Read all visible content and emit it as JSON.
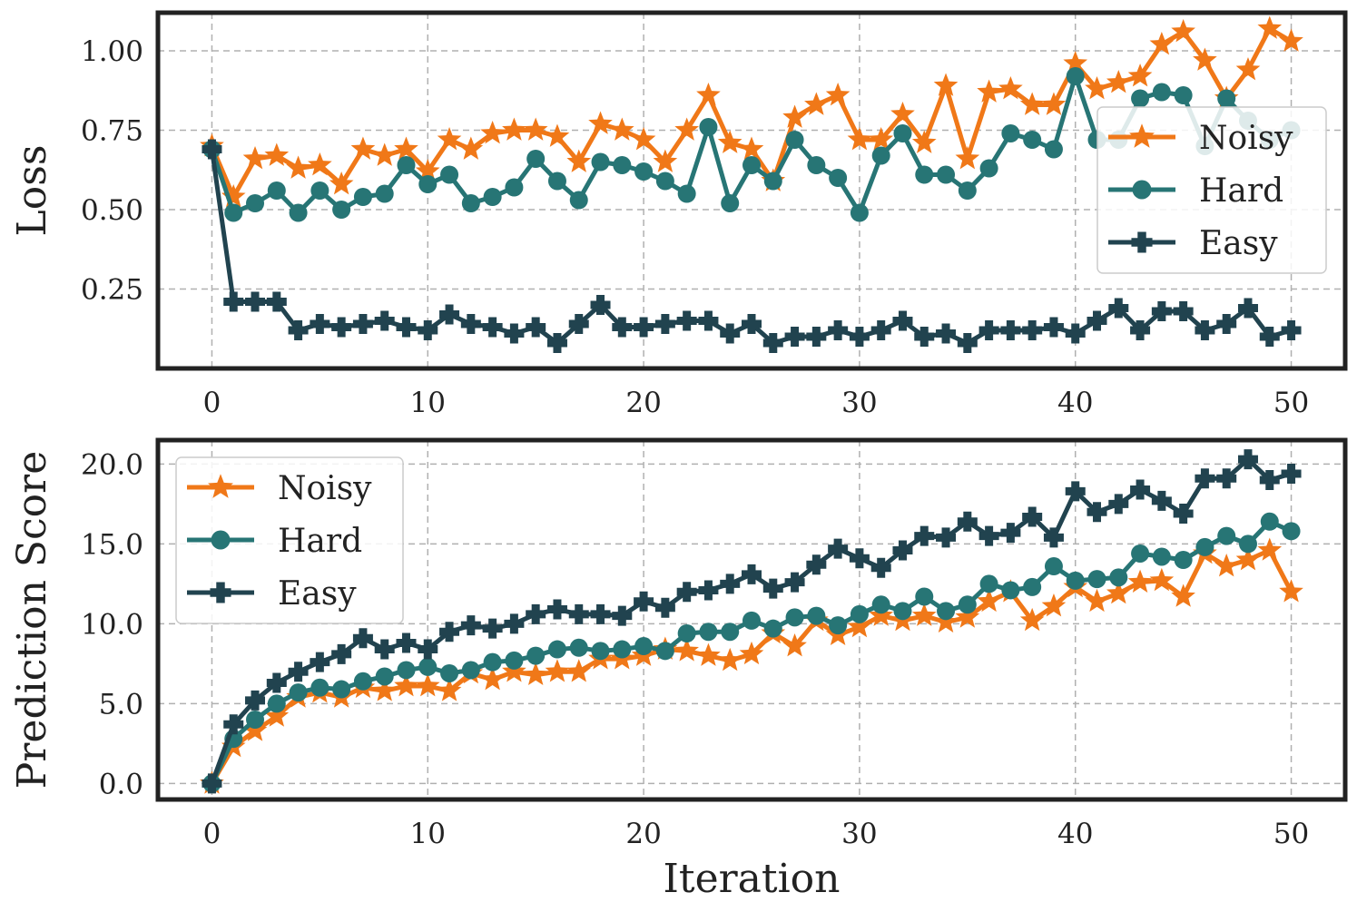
{
  "chart_data": [
    {
      "type": "line",
      "title": "",
      "xlabel": "",
      "ylabel": "Loss",
      "xlim": [
        -2.5,
        52.5
      ],
      "ylim": [
        0.0,
        1.12
      ],
      "xticks": [
        0,
        10,
        20,
        30,
        40,
        50
      ],
      "xtick_labels": [
        "0",
        "10",
        "20",
        "30",
        "40",
        "50"
      ],
      "yticks": [
        0.25,
        0.5,
        0.75,
        1.0
      ],
      "ytick_labels": [
        "0.25",
        "0.50",
        "0.75",
        "1.00"
      ],
      "grid": true,
      "legend": "right",
      "x": [
        0,
        1,
        2,
        3,
        4,
        5,
        6,
        7,
        8,
        9,
        10,
        11,
        12,
        13,
        14,
        15,
        16,
        17,
        18,
        19,
        20,
        21,
        22,
        23,
        24,
        25,
        26,
        27,
        28,
        29,
        30,
        31,
        32,
        33,
        34,
        35,
        36,
        37,
        38,
        39,
        40,
        41,
        42,
        43,
        44,
        45,
        46,
        47,
        48,
        49,
        50
      ],
      "series": [
        {
          "name": "Noisy",
          "color": "#F07818",
          "marker": "star",
          "values": [
            0.7,
            0.54,
            0.66,
            0.67,
            0.63,
            0.64,
            0.58,
            0.69,
            0.67,
            0.69,
            0.62,
            0.72,
            0.69,
            0.74,
            0.75,
            0.75,
            0.73,
            0.65,
            0.77,
            0.75,
            0.72,
            0.65,
            0.75,
            0.86,
            0.71,
            0.69,
            0.59,
            0.79,
            0.83,
            0.86,
            0.72,
            0.72,
            0.8,
            0.71,
            0.89,
            0.66,
            0.87,
            0.88,
            0.83,
            0.83,
            0.96,
            0.88,
            0.9,
            0.92,
            1.02,
            1.06,
            0.97,
            0.85,
            0.94,
            1.07,
            1.03
          ]
        },
        {
          "name": "Hard",
          "color": "#277575",
          "marker": "circle",
          "values": [
            0.69,
            0.49,
            0.52,
            0.56,
            0.49,
            0.56,
            0.5,
            0.54,
            0.55,
            0.64,
            0.58,
            0.61,
            0.52,
            0.54,
            0.57,
            0.66,
            0.59,
            0.53,
            0.65,
            0.64,
            0.62,
            0.59,
            0.55,
            0.76,
            0.52,
            0.64,
            0.59,
            0.72,
            0.64,
            0.6,
            0.49,
            0.67,
            0.74,
            0.61,
            0.61,
            0.56,
            0.63,
            0.74,
            0.72,
            0.69,
            0.92,
            0.72,
            0.72,
            0.85,
            0.87,
            0.86,
            0.7,
            0.85,
            0.78,
            0.72,
            0.75
          ]
        },
        {
          "name": "Easy",
          "color": "#21434F",
          "marker": "plus",
          "values": [
            0.69,
            0.21,
            0.21,
            0.21,
            0.12,
            0.14,
            0.13,
            0.14,
            0.15,
            0.13,
            0.12,
            0.17,
            0.14,
            0.13,
            0.11,
            0.13,
            0.08,
            0.14,
            0.2,
            0.13,
            0.13,
            0.14,
            0.15,
            0.15,
            0.11,
            0.14,
            0.08,
            0.1,
            0.1,
            0.12,
            0.1,
            0.12,
            0.15,
            0.1,
            0.11,
            0.08,
            0.12,
            0.12,
            0.12,
            0.13,
            0.11,
            0.15,
            0.19,
            0.12,
            0.18,
            0.18,
            0.12,
            0.14,
            0.19,
            0.1,
            0.12
          ]
        }
      ]
    },
    {
      "type": "line",
      "title": "",
      "xlabel": "Iteration",
      "ylabel": "Prediction Score",
      "xlim": [
        -2.5,
        52.5
      ],
      "ylim": [
        -1.0,
        21.5
      ],
      "xticks": [
        0,
        10,
        20,
        30,
        40,
        50
      ],
      "xtick_labels": [
        "0",
        "10",
        "20",
        "30",
        "40",
        "50"
      ],
      "yticks": [
        0,
        5,
        10,
        15,
        20
      ],
      "ytick_labels": [
        "0.0",
        "5.0",
        "10.0",
        "15.0",
        "20.0"
      ],
      "grid": true,
      "legend": "top-left",
      "x": [
        0,
        1,
        2,
        3,
        4,
        5,
        6,
        7,
        8,
        9,
        10,
        11,
        12,
        13,
        14,
        15,
        16,
        17,
        18,
        19,
        20,
        21,
        22,
        23,
        24,
        25,
        26,
        27,
        28,
        29,
        30,
        31,
        32,
        33,
        34,
        35,
        36,
        37,
        38,
        39,
        40,
        41,
        42,
        43,
        44,
        45,
        46,
        47,
        48,
        49,
        50
      ],
      "series": [
        {
          "name": "Noisy",
          "color": "#F07818",
          "marker": "star",
          "values": [
            0.0,
            2.3,
            3.3,
            4.2,
            5.4,
            5.7,
            5.4,
            6.0,
            5.8,
            6.1,
            6.1,
            5.8,
            6.9,
            6.5,
            7.0,
            6.8,
            7.0,
            7.0,
            7.8,
            7.8,
            8.0,
            8.4,
            8.3,
            8.0,
            7.7,
            8.1,
            9.4,
            8.6,
            10.2,
            9.3,
            9.8,
            10.5,
            10.2,
            10.5,
            10.1,
            10.4,
            11.4,
            12.0,
            10.2,
            11.1,
            12.3,
            11.4,
            11.9,
            12.6,
            12.7,
            11.7,
            14.4,
            13.6,
            14.0,
            14.6,
            12.0
          ]
        },
        {
          "name": "Hard",
          "color": "#277575",
          "marker": "circle",
          "values": [
            0.0,
            2.8,
            4.0,
            5.0,
            5.7,
            6.0,
            5.9,
            6.4,
            6.7,
            7.1,
            7.3,
            6.9,
            7.1,
            7.6,
            7.7,
            8.0,
            8.4,
            8.5,
            8.3,
            8.4,
            8.6,
            8.3,
            9.4,
            9.5,
            9.5,
            10.2,
            9.7,
            10.4,
            10.5,
            9.9,
            10.6,
            11.2,
            10.8,
            11.7,
            10.8,
            11.2,
            12.5,
            12.1,
            12.3,
            13.6,
            12.7,
            12.8,
            12.9,
            14.4,
            14.2,
            14.0,
            14.8,
            15.5,
            15.0,
            16.4,
            15.8
          ]
        },
        {
          "name": "Easy",
          "color": "#21434F",
          "marker": "plus",
          "values": [
            0.0,
            3.7,
            5.2,
            6.3,
            7.0,
            7.6,
            8.1,
            9.1,
            8.4,
            8.8,
            8.4,
            9.5,
            9.9,
            9.7,
            10.0,
            10.6,
            10.9,
            10.6,
            10.6,
            10.5,
            11.4,
            11.0,
            12.0,
            12.1,
            12.5,
            13.1,
            12.2,
            12.6,
            13.7,
            14.7,
            14.1,
            13.5,
            14.6,
            15.5,
            15.4,
            16.4,
            15.5,
            15.7,
            16.7,
            15.4,
            18.3,
            17.0,
            17.5,
            18.4,
            17.7,
            16.9,
            19.1,
            19.1,
            20.3,
            19.0,
            19.4
          ]
        }
      ]
    }
  ]
}
